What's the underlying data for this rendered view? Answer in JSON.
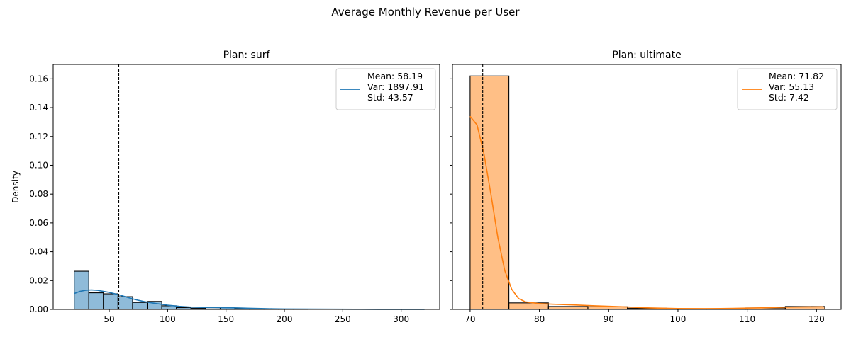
{
  "figure_title": "Average Monthly Revenue per User",
  "chart_data": [
    {
      "type": "bar",
      "title": "Plan: surf",
      "xlabel": "",
      "ylabel": "Density",
      "xlim": [
        2,
        333
      ],
      "ylim": [
        0,
        0.17
      ],
      "xticks": [
        50,
        100,
        150,
        200,
        250,
        300
      ],
      "yticks": [
        0.0,
        0.02,
        0.04,
        0.06,
        0.08,
        0.1,
        0.12,
        0.14,
        0.16
      ],
      "color": "#1f77b4",
      "bins": [
        {
          "x0": 20,
          "x1": 32.5,
          "value": 0.0265
        },
        {
          "x0": 32.5,
          "x1": 45,
          "value": 0.0115
        },
        {
          "x0": 45,
          "x1": 57.5,
          "value": 0.0108
        },
        {
          "x0": 57.5,
          "x1": 70,
          "value": 0.0088
        },
        {
          "x0": 70,
          "x1": 82.5,
          "value": 0.0048
        },
        {
          "x0": 82.5,
          "x1": 95,
          "value": 0.0055
        },
        {
          "x0": 95,
          "x1": 107.5,
          "value": 0.0025
        },
        {
          "x0": 107.5,
          "x1": 120,
          "value": 0.0012
        },
        {
          "x0": 120,
          "x1": 132.5,
          "value": 0.0008
        },
        {
          "x0": 132.5,
          "x1": 145,
          "value": 0.0003
        },
        {
          "x0": 145,
          "x1": 157.5,
          "value": 0.0012
        },
        {
          "x0": 157.5,
          "x1": 170,
          "value": 0.0005
        },
        {
          "x0": 170,
          "x1": 182.5,
          "value": 0.0004
        },
        {
          "x0": 182.5,
          "x1": 195,
          "value": 0.0002
        },
        {
          "x0": 195,
          "x1": 207.5,
          "value": 0.0002
        },
        {
          "x0": 207.5,
          "x1": 220,
          "value": 0.0001
        }
      ],
      "kde": {
        "x": [
          20,
          25,
          30,
          35,
          40,
          45,
          50,
          55,
          60,
          65,
          70,
          75,
          80,
          85,
          90,
          95,
          100,
          110,
          120,
          130,
          140,
          150,
          160,
          170,
          180,
          190,
          200,
          220,
          240,
          260,
          280,
          300,
          320
        ],
        "y": [
          0.011,
          0.0125,
          0.0133,
          0.0135,
          0.0132,
          0.0125,
          0.0118,
          0.0108,
          0.0097,
          0.0085,
          0.0073,
          0.0063,
          0.0054,
          0.0047,
          0.0041,
          0.0035,
          0.0029,
          0.0021,
          0.0016,
          0.0014,
          0.0013,
          0.0012,
          0.001,
          0.0008,
          0.0006,
          0.0004,
          0.0003,
          0.0002,
          0.00015,
          0.0001,
          5e-05,
          3e-05,
          2e-05
        ]
      },
      "mean_line": 58.19,
      "legend": {
        "position": "top-right",
        "lines": [
          "Mean: 58.19",
          "Var: 1897.91",
          "Std: 43.57"
        ]
      }
    },
    {
      "type": "bar",
      "title": "Plan: ultimate",
      "xlabel": "",
      "ylabel": "",
      "xlim": [
        67.45,
        123.55
      ],
      "ylim": [
        0,
        0.17
      ],
      "xticks": [
        70,
        80,
        90,
        100,
        110,
        120
      ],
      "yticks": [
        0.0,
        0.02,
        0.04,
        0.06,
        0.08,
        0.1,
        0.12,
        0.14,
        0.16
      ],
      "color": "#ff7f0e",
      "bins": [
        {
          "x0": 70,
          "x1": 75.6,
          "value": 0.162
        },
        {
          "x0": 75.6,
          "x1": 81.3,
          "value": 0.0045
        },
        {
          "x0": 81.3,
          "x1": 87,
          "value": 0.002
        },
        {
          "x0": 87,
          "x1": 92.7,
          "value": 0.0018
        },
        {
          "x0": 92.7,
          "x1": 98.4,
          "value": 0.0008
        },
        {
          "x0": 98.4,
          "x1": 104.1,
          "value": 0.0002
        },
        {
          "x0": 104.1,
          "x1": 109.8,
          "value": 0.0002
        },
        {
          "x0": 109.8,
          "x1": 115.5,
          "value": 0.001
        },
        {
          "x0": 115.5,
          "x1": 121.2,
          "value": 0.002
        }
      ],
      "kde": {
        "x": [
          70,
          71,
          72,
          73,
          74,
          75,
          76,
          77,
          78,
          80,
          82,
          85,
          88,
          92,
          96,
          100,
          104,
          108,
          112,
          116,
          121
        ],
        "y": [
          0.134,
          0.128,
          0.108,
          0.08,
          0.05,
          0.027,
          0.014,
          0.0075,
          0.0052,
          0.004,
          0.0036,
          0.0031,
          0.0025,
          0.0018,
          0.001,
          0.0006,
          0.0005,
          0.0007,
          0.0011,
          0.0016,
          0.0018
        ]
      },
      "mean_line": 71.82,
      "legend": {
        "position": "top-right",
        "lines": [
          "Mean: 71.82",
          "Var: 55.13",
          "Std: 7.42"
        ]
      }
    }
  ]
}
